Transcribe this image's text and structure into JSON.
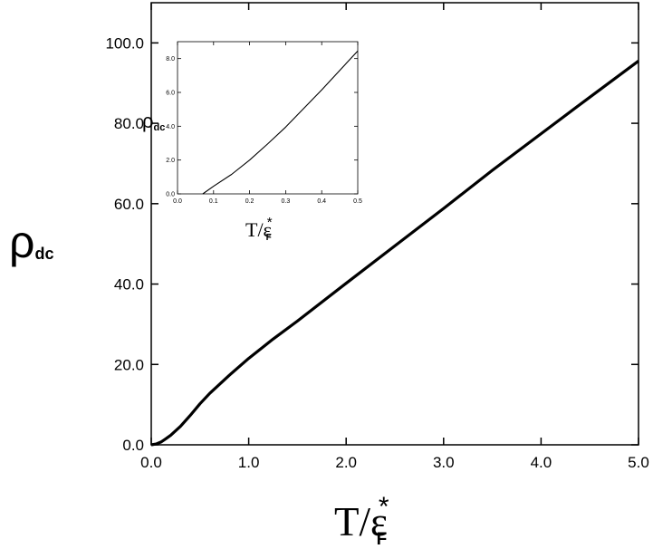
{
  "chart_data": [
    {
      "type": "line",
      "xlabel": {
        "main": "T/ε",
        "superscript": "*",
        "subscript": "F"
      },
      "ylabel": {
        "main": "ρ",
        "subscript": "dc"
      },
      "xlim": [
        0,
        5
      ],
      "ylim": [
        0,
        110
      ],
      "xticks": [
        0,
        1,
        2,
        3,
        4,
        5
      ],
      "xtick_labels": [
        "0.0",
        "1.0",
        "2.0",
        "3.0",
        "4.0",
        "5.0"
      ],
      "yticks": [
        0,
        20,
        40,
        60,
        80,
        100
      ],
      "ytick_labels": [
        "0.0",
        "20.0",
        "40.0",
        "60.0",
        "80.0",
        "100.0"
      ],
      "grid": false,
      "series": [
        {
          "x": [
            0,
            0.05,
            0.1,
            0.15,
            0.2,
            0.3,
            0.4,
            0.5,
            0.6,
            0.8,
            1.0,
            1.25,
            1.5,
            2.0,
            2.5,
            3.0,
            3.5,
            4.0,
            4.5,
            5.0
          ],
          "y": [
            0,
            0.2,
            0.7,
            1.5,
            2.4,
            4.6,
            7.3,
            10.2,
            12.8,
            17.3,
            21.5,
            26.3,
            30.8,
            40.2,
            49.5,
            58.8,
            68.3,
            77.4,
            86.5,
            95.5
          ]
        }
      ]
    },
    {
      "type": "line",
      "xlabel": {
        "main": "T/ε",
        "superscript": "*",
        "subscript": "F"
      },
      "ylabel": {
        "main": "ρ",
        "subscript": "dc"
      },
      "xlim": [
        0,
        0.5
      ],
      "ylim": [
        0,
        9
      ],
      "xticks": [
        0,
        0.1,
        0.2,
        0.3,
        0.4,
        0.5
      ],
      "xtick_labels": [
        "0.0",
        "0.1",
        "0.2",
        "0.3",
        "0.4",
        "0.5"
      ],
      "yticks": [
        0,
        2,
        4,
        6,
        8
      ],
      "ytick_labels": [
        "0.0",
        "2.0",
        "4.0",
        "6.0",
        "8.0"
      ],
      "grid": false,
      "series": [
        {
          "x": [
            0.07,
            0.1,
            0.15,
            0.2,
            0.25,
            0.3,
            0.35,
            0.4,
            0.45,
            0.5
          ],
          "y": [
            0,
            0.45,
            1.15,
            2.0,
            2.95,
            3.95,
            5.05,
            6.15,
            7.3,
            8.45
          ]
        }
      ]
    }
  ]
}
